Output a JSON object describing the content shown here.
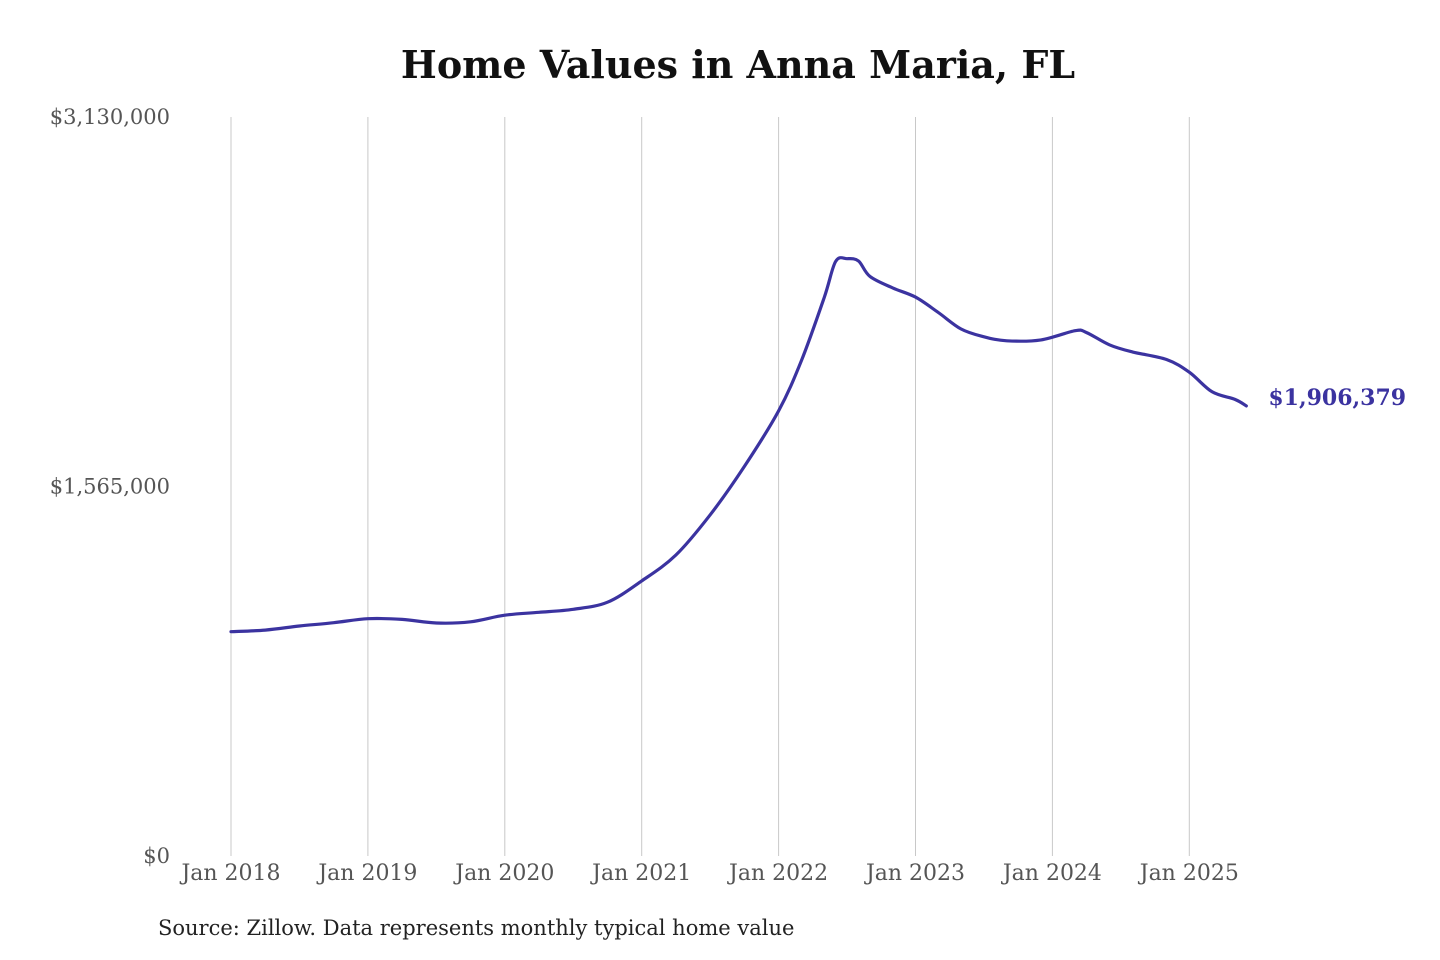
{
  "chart_data": {
    "type": "line",
    "title": "Home Values in Anna Maria, FL",
    "xlabel": "",
    "ylabel": "",
    "ylim": [
      0,
      3130000
    ],
    "yticks": [
      {
        "value": 0,
        "label": "$0"
      },
      {
        "value": 1565000,
        "label": "$1,565,000"
      },
      {
        "value": 3130000,
        "label": "$3,130,000"
      }
    ],
    "xticks": [
      "Jan 2018",
      "Jan 2019",
      "Jan 2020",
      "Jan 2021",
      "Jan 2022",
      "Jan 2023",
      "Jan 2024",
      "Jan 2025"
    ],
    "grid": "vertical",
    "series": [
      {
        "color": "#3b33a0",
        "end_label": "$1,906,379",
        "points": [
          [
            "2018-01",
            950000
          ],
          [
            "2018-04",
            957000
          ],
          [
            "2018-07",
            974000
          ],
          [
            "2018-10",
            988000
          ],
          [
            "2019-01",
            1005000
          ],
          [
            "2019-04",
            1002000
          ],
          [
            "2019-07",
            987000
          ],
          [
            "2019-10",
            992000
          ],
          [
            "2020-01",
            1020000
          ],
          [
            "2020-04",
            1032000
          ],
          [
            "2020-07",
            1045000
          ],
          [
            "2020-10",
            1075000
          ],
          [
            "2021-01",
            1165000
          ],
          [
            "2021-04",
            1275000
          ],
          [
            "2021-07",
            1445000
          ],
          [
            "2021-10",
            1650000
          ],
          [
            "2022-01",
            1885000
          ],
          [
            "2022-03",
            2098000
          ],
          [
            "2022-05",
            2365000
          ],
          [
            "2022-06",
            2518000
          ],
          [
            "2022-07",
            2530000
          ],
          [
            "2022-08",
            2520000
          ],
          [
            "2022-09",
            2455000
          ],
          [
            "2022-11",
            2406000
          ],
          [
            "2023-01",
            2367000
          ],
          [
            "2023-03",
            2302000
          ],
          [
            "2023-05",
            2232000
          ],
          [
            "2023-07",
            2199000
          ],
          [
            "2023-09",
            2182000
          ],
          [
            "2023-12",
            2186000
          ],
          [
            "2024-03",
            2225000
          ],
          [
            "2024-04",
            2217000
          ],
          [
            "2024-06",
            2165000
          ],
          [
            "2024-08",
            2135000
          ],
          [
            "2024-11",
            2103000
          ],
          [
            "2025-01",
            2049000
          ],
          [
            "2025-03",
            1966000
          ],
          [
            "2025-05",
            1934000
          ],
          [
            "2025-06",
            1906379
          ]
        ]
      }
    ]
  },
  "source_note": "Source: Zillow. Data represents monthly typical home value"
}
